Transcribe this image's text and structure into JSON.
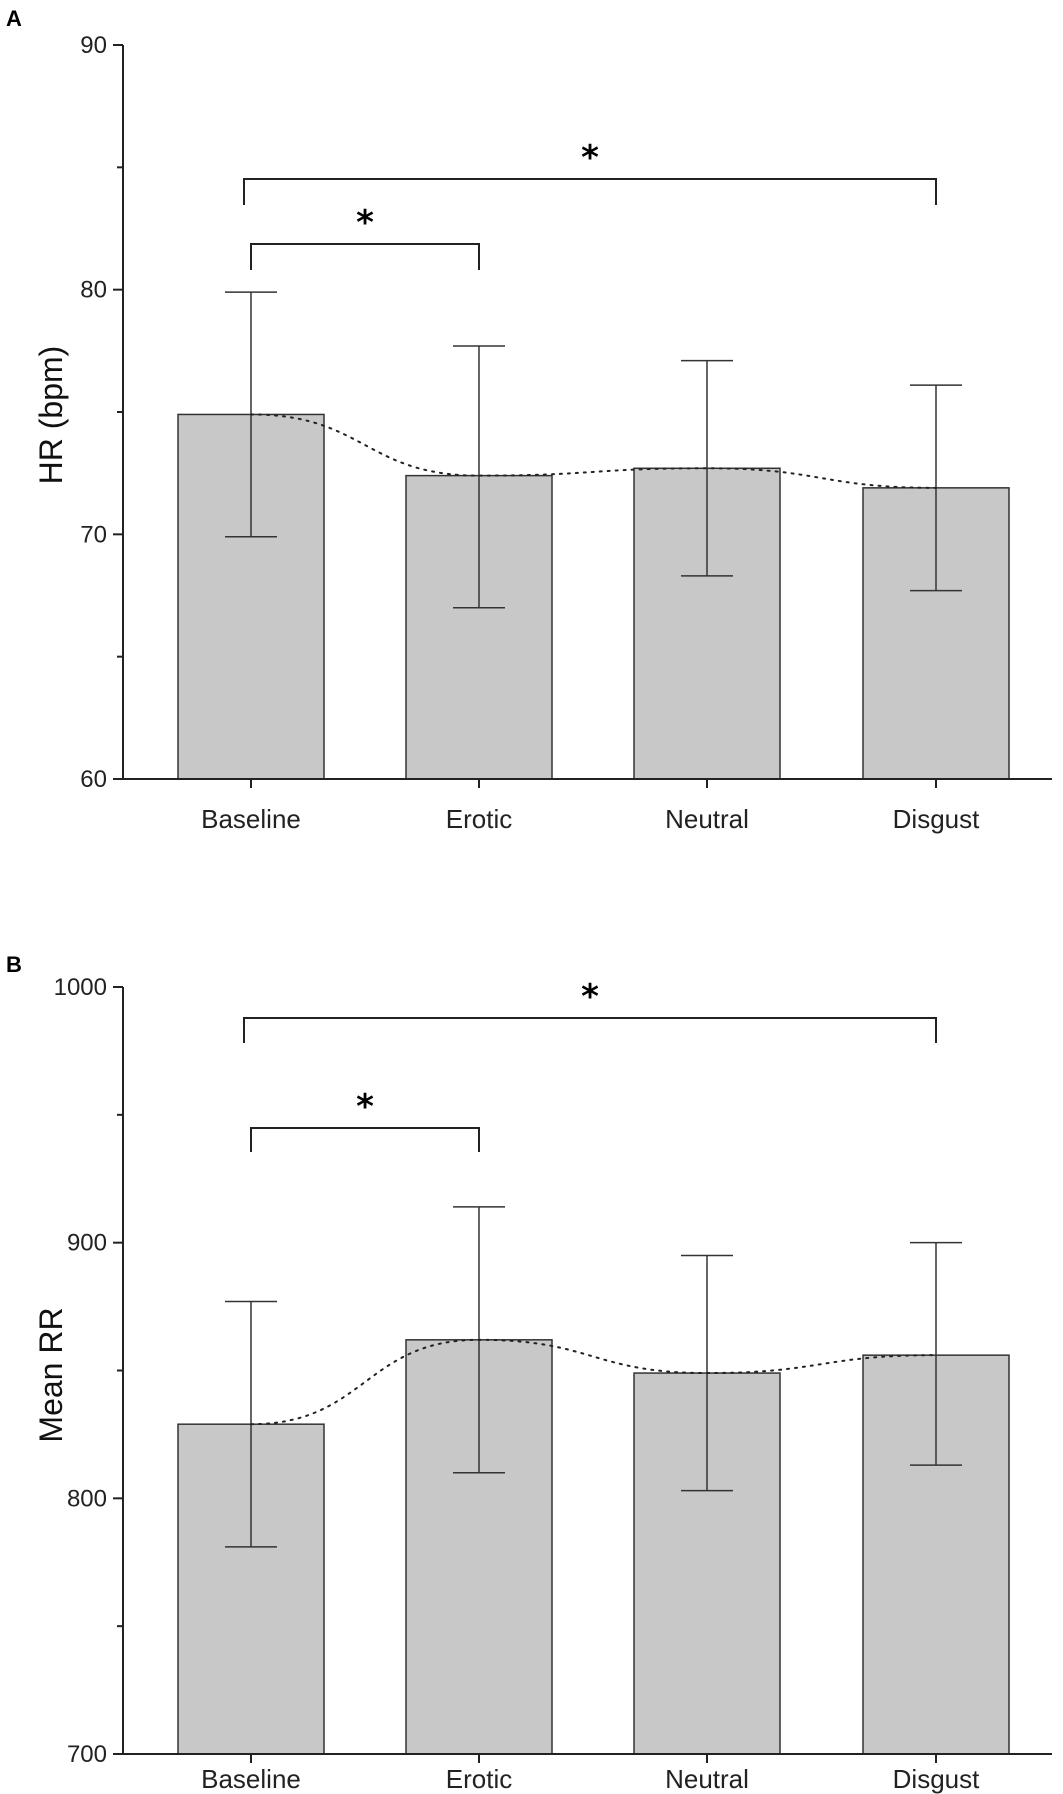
{
  "chart_data": [
    {
      "type": "bar",
      "panel": "A",
      "categories": [
        "Baseline",
        "Erotic",
        "Neutral",
        "Disgust"
      ],
      "values": [
        74.9,
        72.4,
        72.7,
        71.9
      ],
      "error_upper": [
        79.9,
        77.7,
        77.1,
        76.1
      ],
      "error_lower": [
        69.9,
        67.0,
        68.3,
        67.7
      ],
      "ylabel": "HR (bpm)",
      "ylim": [
        60,
        90
      ],
      "yticks": [
        60,
        70,
        80,
        90
      ],
      "bar_color": "#c8c8c8",
      "trend_line": "dotted",
      "significance": [
        {
          "from": "Baseline",
          "to": "Erotic",
          "label": "*"
        },
        {
          "from": "Baseline",
          "to": "Disgust",
          "label": "*"
        }
      ]
    },
    {
      "type": "bar",
      "panel": "B",
      "categories": [
        "Baseline",
        "Erotic",
        "Neutral",
        "Disgust"
      ],
      "values": [
        829,
        862,
        849,
        856
      ],
      "error_upper": [
        877,
        914,
        895,
        900
      ],
      "error_lower": [
        781,
        810,
        803,
        813
      ],
      "ylabel": "Mean RR",
      "ylim": [
        700,
        1000
      ],
      "yticks": [
        700,
        800,
        900,
        1000
      ],
      "bar_color": "#c8c8c8",
      "trend_line": "dotted",
      "significance": [
        {
          "from": "Baseline",
          "to": "Erotic",
          "label": "*"
        },
        {
          "from": "Baseline",
          "to": "Disgust",
          "label": "*"
        }
      ]
    }
  ]
}
